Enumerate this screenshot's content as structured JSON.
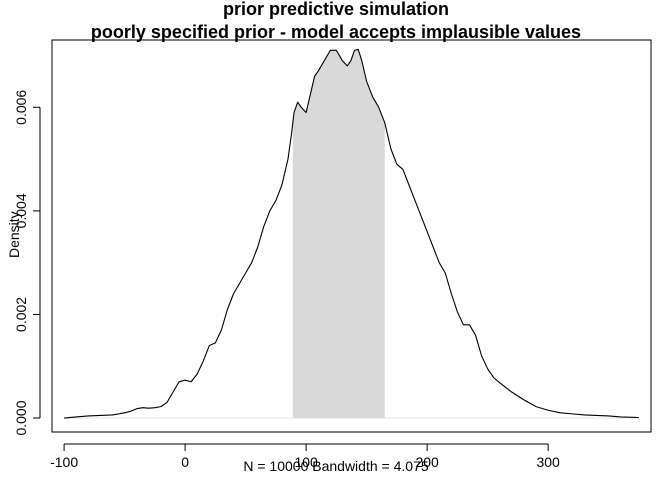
{
  "chart_data": {
    "type": "area",
    "title": "prior predictive simulation",
    "subtitle": "poorly specified prior - model accepts implausible values",
    "ylabel": "Density",
    "xlabel": "N = 10000   Bandwidth = 4.075",
    "xlim": [
      -110,
      385
    ],
    "ylim": [
      -0.00027,
      0.0073
    ],
    "x_ticks": [
      -100,
      0,
      100,
      200,
      300
    ],
    "x_tick_labels": [
      "-100",
      "0",
      "100",
      "200",
      "300"
    ],
    "y_ticks": [
      0.0,
      0.002,
      0.004,
      0.006
    ],
    "y_tick_labels": [
      "0.000",
      "0.002",
      "0.004",
      "0.006"
    ],
    "grid": false,
    "shaded_interval": [
      89,
      165
    ],
    "shade_color": "#d9d9d9",
    "line_color": "#000000",
    "series": [
      {
        "x": [
          -100,
          -90,
          -80,
          -70,
          -60,
          -50,
          -45,
          -40,
          -35,
          -30,
          -25,
          -20,
          -15,
          -10,
          -5,
          0,
          5,
          10,
          15,
          20,
          25,
          30,
          35,
          40,
          45,
          50,
          55,
          60,
          65,
          70,
          75,
          80,
          85,
          88,
          90,
          93,
          96,
          100,
          103,
          107,
          110,
          115,
          120,
          125,
          130,
          134,
          137,
          140,
          143,
          146,
          150,
          155,
          160,
          165,
          170,
          175,
          180,
          185,
          190,
          195,
          200,
          205,
          210,
          215,
          220,
          225,
          230,
          235,
          240,
          245,
          250,
          255,
          260,
          270,
          280,
          290,
          300,
          310,
          320,
          330,
          340,
          350,
          360,
          375
        ],
        "y": [
          0.0,
          2e-05,
          4e-05,
          5e-05,
          6e-05,
          0.0001,
          0.00013,
          0.00018,
          0.0002,
          0.00019,
          0.0002,
          0.00022,
          0.0003,
          0.0005,
          0.0007,
          0.00073,
          0.0007,
          0.00085,
          0.0011,
          0.0014,
          0.00145,
          0.0017,
          0.0021,
          0.0024,
          0.0026,
          0.0028,
          0.003,
          0.0033,
          0.0037,
          0.004,
          0.0042,
          0.0045,
          0.005,
          0.0055,
          0.0059,
          0.0061,
          0.006,
          0.0059,
          0.0062,
          0.0066,
          0.0067,
          0.0069,
          0.0071,
          0.0071,
          0.0069,
          0.0068,
          0.0069,
          0.0071,
          0.00712,
          0.0069,
          0.0065,
          0.0062,
          0.006,
          0.0057,
          0.0052,
          0.0049,
          0.0048,
          0.0045,
          0.0042,
          0.0039,
          0.0036,
          0.0033,
          0.003,
          0.0028,
          0.0024,
          0.00205,
          0.0018,
          0.0018,
          0.0016,
          0.0012,
          0.00095,
          0.00078,
          0.00068,
          0.0005,
          0.00035,
          0.00022,
          0.00015,
          0.0001,
          8e-05,
          6e-05,
          5e-05,
          4e-05,
          2e-05,
          1e-05
        ]
      }
    ]
  }
}
